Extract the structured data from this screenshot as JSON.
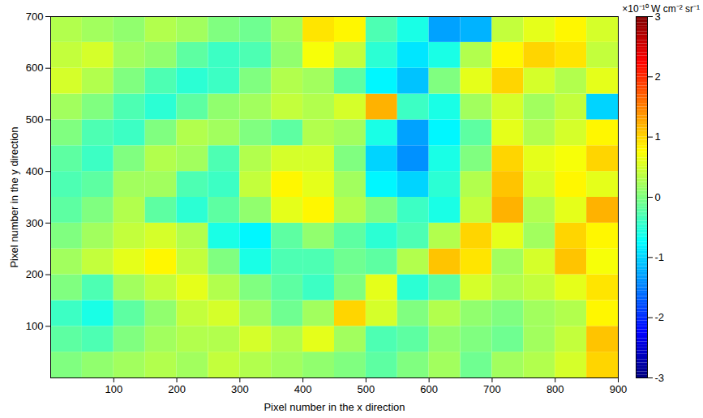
{
  "chart_data": {
    "type": "heatmap",
    "x_label": "Pixel number in the x direction",
    "y_label": "Pixel number in the y direction",
    "xlim": [
      0,
      900
    ],
    "ylim": [
      0,
      700
    ],
    "xticks": [
      100,
      200,
      300,
      400,
      500,
      600,
      700,
      800,
      900
    ],
    "yticks": [
      100,
      200,
      300,
      400,
      500,
      600,
      700
    ],
    "x_bins": [
      0,
      50,
      100,
      150,
      200,
      250,
      300,
      350,
      400,
      450,
      500,
      550,
      600,
      650,
      700,
      750,
      800,
      850,
      900
    ],
    "y_bins": [
      0,
      50,
      100,
      150,
      200,
      250,
      300,
      350,
      400,
      450,
      500,
      550,
      600,
      650,
      700
    ],
    "values": [
      [
        0,
        0.1,
        0.2,
        0.3,
        0.2,
        0.4,
        0.3,
        0.2,
        0.1,
        0,
        -0.2,
        0,
        0.2,
        -0.1,
        0.2,
        0.3,
        0.5,
        1.0
      ],
      [
        -0.2,
        -0.3,
        0,
        0.2,
        0.3,
        0.3,
        0.5,
        0.3,
        0.6,
        0.2,
        -0.3,
        -0.2,
        0.1,
        0,
        -0.1,
        0.2,
        0.4,
        1.1
      ],
      [
        -0.4,
        -0.6,
        -0.2,
        0.1,
        0.4,
        0.5,
        0.2,
        -0.1,
        0.2,
        1.0,
        0.5,
        0,
        0.3,
        0.1,
        0,
        0.2,
        0.3,
        0.8
      ],
      [
        0,
        -0.3,
        0.2,
        0.4,
        0.6,
        0.3,
        0,
        -0.2,
        -0.4,
        0,
        0.6,
        -0.5,
        -0.2,
        0.5,
        0.3,
        0.4,
        0.6,
        0.9
      ],
      [
        0.2,
        0.4,
        0.6,
        0.8,
        0.4,
        0,
        -0.6,
        -0.3,
        -0.3,
        -0.1,
        -0.2,
        0.3,
        1.1,
        0.9,
        0.2,
        0.5,
        1.1,
        0.7
      ],
      [
        0,
        0.2,
        0.4,
        0.5,
        0.3,
        -0.6,
        -0.8,
        -0.2,
        0.1,
        -0.2,
        -0.5,
        -0.3,
        0.3,
        1.0,
        0.6,
        0.2,
        1.0,
        0.8
      ],
      [
        -0.2,
        0,
        0.3,
        -0.2,
        -0.5,
        -0.2,
        0.1,
        0.6,
        0.8,
        0.3,
        0,
        -0.4,
        -0.6,
        0.4,
        1.2,
        0.3,
        0.6,
        1.2
      ],
      [
        -0.3,
        -0.2,
        0.2,
        0.2,
        -0.3,
        -0.4,
        0.4,
        0.8,
        0.6,
        0.2,
        -0.8,
        -1.0,
        -0.5,
        0.3,
        1.1,
        0.5,
        0.8,
        0.6
      ],
      [
        -0.2,
        -0.4,
        0,
        0.3,
        0.2,
        -0.3,
        0.3,
        0.5,
        0.5,
        0,
        -1.0,
        -1.4,
        -0.6,
        0,
        1.0,
        0.6,
        0.7,
        1.0
      ],
      [
        0,
        -0.3,
        -0.4,
        0,
        0.3,
        0.2,
        0,
        -0.2,
        0.3,
        0.2,
        -0.6,
        -1.3,
        -0.8,
        -0.2,
        0.6,
        0.3,
        0.5,
        0.8
      ],
      [
        0.2,
        0,
        -0.3,
        -0.5,
        -0.2,
        0.1,
        0.2,
        0.4,
        0.3,
        0.5,
        1.2,
        -0.4,
        -0.6,
        0.2,
        0.5,
        0.2,
        0.4,
        -1.0
      ],
      [
        0.5,
        0.3,
        0,
        -0.3,
        -0.5,
        -0.4,
        0,
        0.3,
        0.2,
        -0.2,
        -0.8,
        -1.1,
        0,
        0.6,
        1.0,
        0.5,
        0.3,
        0.6
      ],
      [
        0.4,
        0.5,
        0.2,
        0.1,
        -0.2,
        -0.4,
        -0.3,
        0.1,
        0.7,
        0.4,
        -0.5,
        -0.9,
        -0.6,
        0.3,
        0.8,
        1.0,
        0.9,
        0.4
      ],
      [
        0.3,
        0.2,
        0.1,
        0.3,
        0.2,
        0,
        -0.1,
        0.2,
        0.9,
        0.8,
        -0.3,
        -0.6,
        -1.3,
        -1.2,
        0.4,
        0.6,
        0.8,
        0.5
      ]
    ],
    "colorbar_label": "×10⁻¹⁰ W cm⁻² sr⁻¹",
    "colorbar_range": [
      -3,
      3
    ],
    "colorbar_ticks": [
      -3,
      -2,
      -1,
      0,
      1,
      2,
      3
    ]
  }
}
